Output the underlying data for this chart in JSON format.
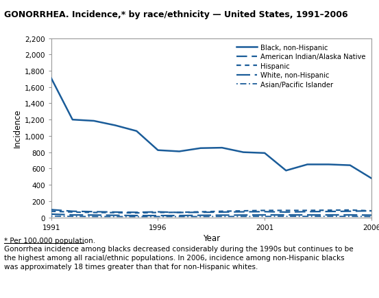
{
  "title": "GONORRHEA. Incidence,* by race/ethnicity — United States, 1991–2006",
  "xlabel": "Year",
  "ylabel": "Incidence",
  "xlim": [
    1991,
    2006
  ],
  "ylim": [
    0,
    2200
  ],
  "yticks": [
    0,
    200,
    400,
    600,
    800,
    1000,
    1200,
    1400,
    1600,
    1800,
    2000,
    2200
  ],
  "xticks": [
    1991,
    1996,
    2001,
    2006
  ],
  "footnote_star": "* Per 100,000 population.",
  "footnote_body": "Gonorrhea incidence among blacks decreased considerably during the 1990s but continues to be\nthe highest among all racial/ethnic populations. In 2006, incidence among non-Hispanic blacks\nwas approximately 18 times greater than that for non-Hispanic whites.",
  "black": [
    1710,
    1200,
    1185,
    1130,
    1060,
    825,
    810,
    850,
    855,
    800,
    790,
    575,
    650,
    650,
    640,
    480
  ],
  "ai": [
    95,
    75,
    70,
    65,
    62,
    68,
    60,
    62,
    65,
    68,
    70,
    65,
    70,
    72,
    75,
    80
  ],
  "hisp": [
    75,
    65,
    60,
    58,
    55,
    60,
    62,
    68,
    75,
    80,
    85,
    85,
    85,
    88,
    90,
    80
  ],
  "white": [
    40,
    30,
    28,
    25,
    22,
    22,
    22,
    25,
    27,
    28,
    30,
    30,
    30,
    30,
    30,
    27
  ],
  "asian": [
    15,
    12,
    10,
    10,
    9,
    10,
    10,
    10,
    11,
    11,
    12,
    12,
    12,
    12,
    12,
    10
  ],
  "color": "#1a5c99",
  "bg_color": "#ffffff"
}
